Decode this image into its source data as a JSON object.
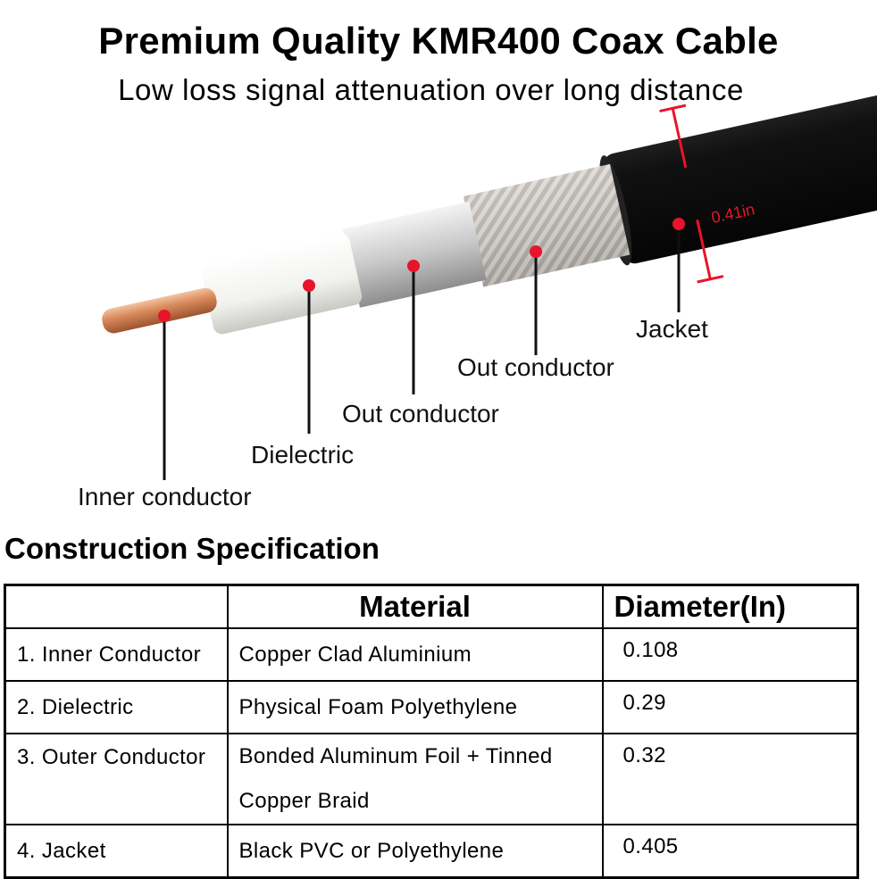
{
  "header": {
    "title": "Premium Quality KMR400 Coax Cable",
    "subtitle": "Low loss signal attenuation over long distance"
  },
  "diagram": {
    "dimension_label": "0.41in",
    "labels": {
      "inner_conductor": "Inner conductor",
      "dielectric": "Dielectric",
      "out_conductor_foil": "Out conductor",
      "out_conductor_braid": "Out conductor",
      "jacket": "Jacket"
    },
    "colors": {
      "marker": "#e8142c",
      "jacket": "#151515",
      "copper": "#d98a5a",
      "dielectric": "#f4f4f2",
      "braid": "#b8b2aa"
    }
  },
  "spec": {
    "heading": "Construction Specification",
    "columns": [
      "",
      "Material",
      "Diameter(In)"
    ],
    "rows": [
      {
        "part": "1. Inner Conductor",
        "material": "Copper Clad Aluminium",
        "diameter": "0.108"
      },
      {
        "part": "2. Dielectric",
        "material": "Physical Foam Polyethylene",
        "diameter": "0.29"
      },
      {
        "part": "3. Outer Conductor",
        "material": "Bonded Aluminum Foil + Tinned Copper Braid",
        "diameter": "0.32"
      },
      {
        "part": "4. Jacket",
        "material": "Black PVC or Polyethylene",
        "diameter": "0.405"
      }
    ]
  }
}
